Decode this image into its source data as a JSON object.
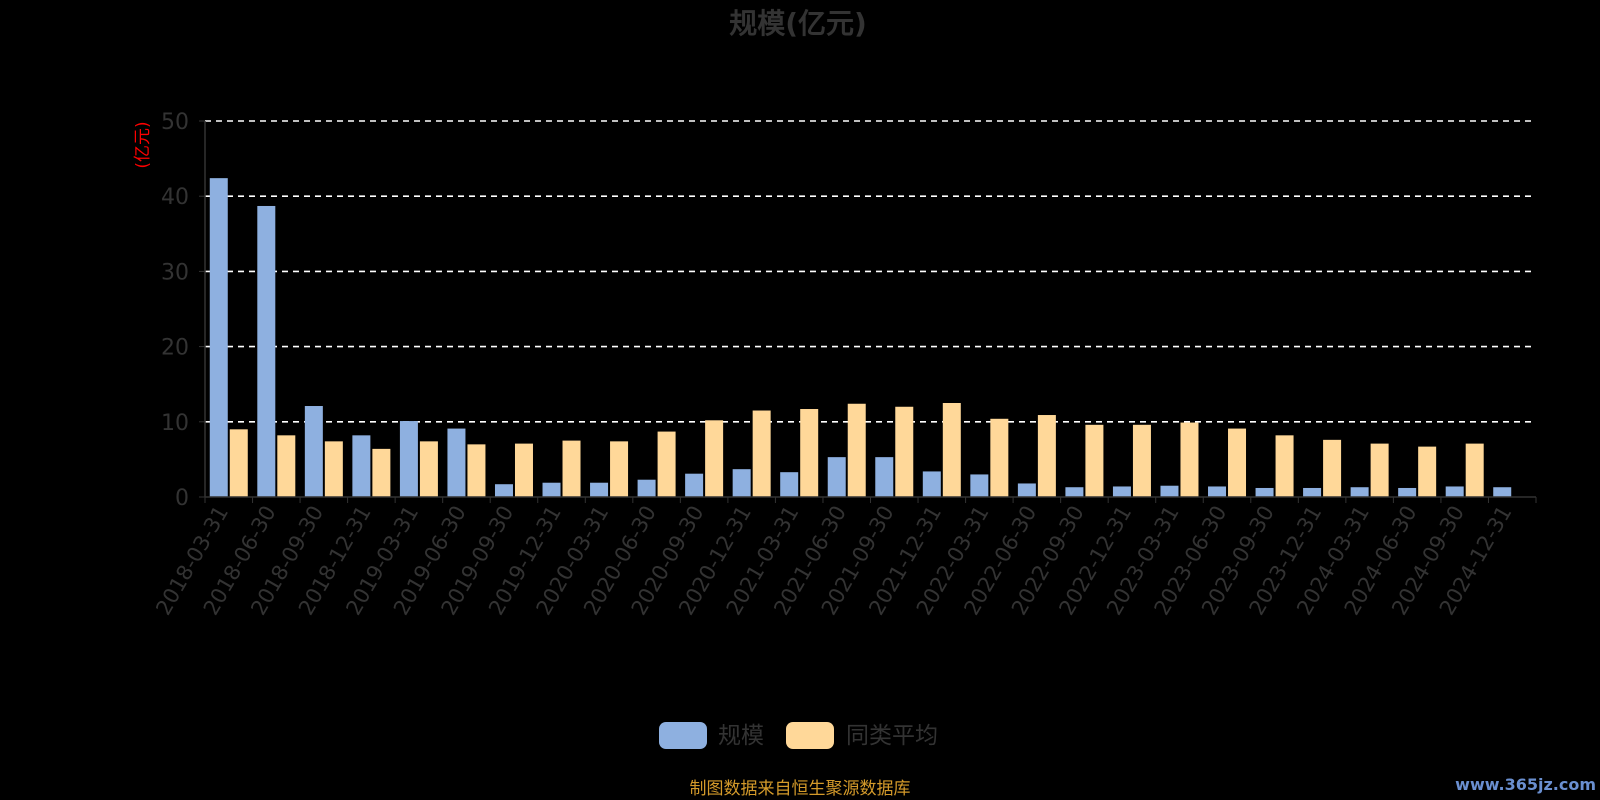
{
  "chart_data": {
    "type": "bar",
    "title": "规模(亿元)",
    "ylabel": "(亿元)",
    "xlabel": "",
    "ylim": [
      0,
      50
    ],
    "yticks": [
      0,
      10,
      20,
      30,
      40,
      50
    ],
    "grid": true,
    "legend_position": "bottom",
    "categories": [
      "2018-03-31",
      "2018-06-30",
      "2018-09-30",
      "2018-12-31",
      "2019-03-31",
      "2019-06-30",
      "2019-09-30",
      "2019-12-31",
      "2020-03-31",
      "2020-06-30",
      "2020-09-30",
      "2020-12-31",
      "2021-03-31",
      "2021-06-30",
      "2021-09-30",
      "2021-12-31",
      "2022-03-31",
      "2022-06-30",
      "2022-09-30",
      "2022-12-31",
      "2023-03-31",
      "2023-06-30",
      "2023-09-30",
      "2023-12-31",
      "2024-03-31",
      "2024-06-30",
      "2024-09-30",
      "2024-12-31"
    ],
    "series": [
      {
        "name": "规模",
        "color": "#8eb0e0",
        "values": [
          42.4,
          38.7,
          12.1,
          8.2,
          10.1,
          9.1,
          1.7,
          1.9,
          1.9,
          2.3,
          3.1,
          3.7,
          3.3,
          5.3,
          5.3,
          3.4,
          3.0,
          1.8,
          1.3,
          1.4,
          1.5,
          1.4,
          1.2,
          1.2,
          1.3,
          1.2,
          1.4,
          1.3
        ]
      },
      {
        "name": "同类平均",
        "color": "#ffd899",
        "values": [
          9.0,
          8.2,
          7.4,
          6.4,
          7.4,
          7.0,
          7.1,
          7.5,
          7.4,
          8.7,
          10.2,
          11.5,
          11.7,
          12.4,
          12.0,
          12.5,
          10.4,
          10.9,
          9.6,
          9.6,
          9.9,
          9.1,
          8.2,
          7.6,
          7.1,
          6.7,
          7.1,
          null
        ]
      }
    ],
    "source_note": "制图数据来自恒生聚源数据库",
    "watermark": "www.365jz.com"
  }
}
